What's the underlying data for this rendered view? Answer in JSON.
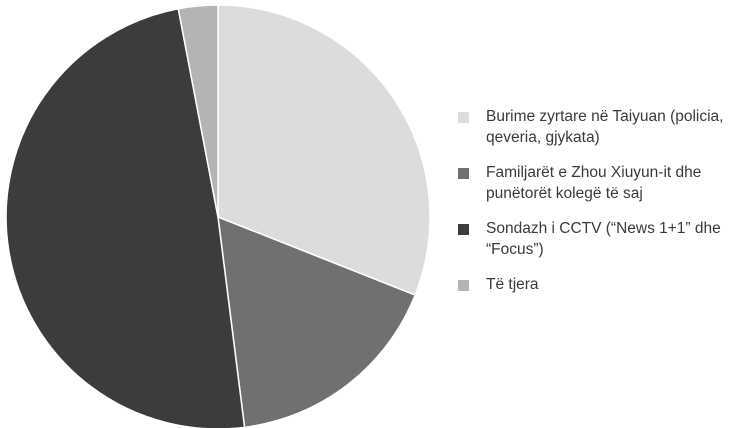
{
  "chart_data": {
    "type": "pie",
    "categories": [
      "Burime zyrtare në Taiyuan (policia,\nqeveria, gjykata)",
      "Familjarët e Zhou Xiuyun-it dhe\npunëtorët kolegë të saj",
      "Sondazh i CCTV (“News 1+1” dhe\n“Focus”)",
      "Të tjera"
    ],
    "values": [
      31,
      17,
      49,
      3
    ],
    "colors": [
      "#dcdcdc",
      "#707070",
      "#3c3c3c",
      "#b4b4b4"
    ],
    "start_angle_deg": 0,
    "direction": "clockwise",
    "legend_position": "right",
    "title": ""
  }
}
